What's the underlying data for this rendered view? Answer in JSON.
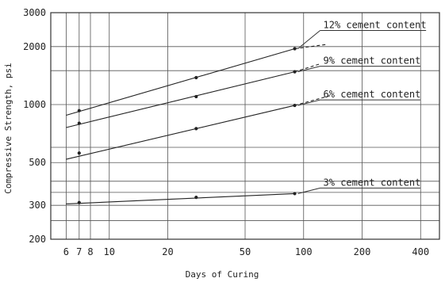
{
  "chart_data": {
    "type": "line",
    "xlabel": "Days of Curing",
    "ylabel": "Compressive Strength, psi",
    "x_scale": "log",
    "y_scale": "log",
    "xlim": [
      5,
      500
    ],
    "ylim": [
      200,
      3000
    ],
    "x_ticks": [
      6,
      7,
      8,
      10,
      20,
      50,
      100,
      200,
      400
    ],
    "x_tick_labels": [
      "6",
      "7",
      "8",
      "10",
      "20",
      "50",
      "100",
      "200",
      "400"
    ],
    "y_ticks": [
      200,
      300,
      500,
      1000,
      2000,
      3000
    ],
    "y_tick_labels": [
      "200",
      "300",
      "500",
      "1000",
      "2000",
      "3000"
    ],
    "x_grid": [
      6,
      7,
      8,
      10,
      20,
      50,
      100,
      200,
      400
    ],
    "y_grid": [
      250,
      300,
      350,
      400,
      500,
      600,
      1000,
      1500,
      2000
    ],
    "grid": true,
    "series": [
      {
        "name": "12% cement content",
        "points": [
          [
            7,
            930
          ],
          [
            28,
            1380
          ],
          [
            90,
            1950
          ]
        ],
        "fit": [
          [
            6,
            880
          ],
          [
            90,
            1950
          ]
        ],
        "extrapolation": [
          [
            90,
            1950
          ],
          [
            130,
            2050
          ]
        ]
      },
      {
        "name": "9% cement content",
        "points": [
          [
            7,
            800
          ],
          [
            28,
            1100
          ],
          [
            90,
            1480
          ]
        ],
        "fit": [
          [
            6,
            760
          ],
          [
            90,
            1480
          ]
        ],
        "extrapolation": [
          [
            90,
            1480
          ],
          [
            120,
            1620
          ]
        ]
      },
      {
        "name": "6% cement content",
        "points": [
          [
            7,
            560
          ],
          [
            28,
            750
          ],
          [
            90,
            990
          ]
        ],
        "fit": [
          [
            6,
            520
          ],
          [
            90,
            990
          ]
        ],
        "extrapolation": [
          [
            90,
            990
          ],
          [
            140,
            1120
          ]
        ]
      },
      {
        "name": "3% cement content",
        "points": [
          [
            7,
            310
          ],
          [
            28,
            330
          ],
          [
            90,
            345
          ]
        ],
        "fit": [
          [
            6,
            305
          ],
          [
            90,
            345
          ]
        ],
        "extrapolation": []
      }
    ]
  }
}
